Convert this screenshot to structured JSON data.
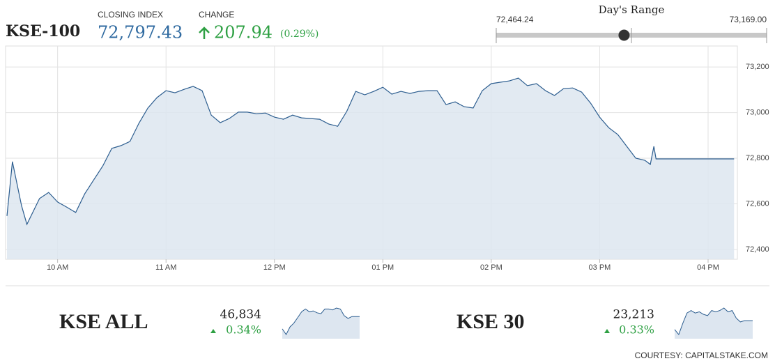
{
  "header": {
    "title": "KSE-100",
    "closing_label": "CLOSING INDEX",
    "closing_index": {
      "value": 72797.43,
      "label": "72,797.43"
    },
    "change_label": "CHANGE",
    "change": 207.94,
    "change_pct": {
      "value": 0.29,
      "label": "(0.29%)"
    }
  },
  "days_range": {
    "title": "Day's Range",
    "low": {
      "value": 72464.24,
      "label": "72,464.24"
    },
    "high": {
      "value": 73169.0,
      "label": "73,169.00"
    }
  },
  "indices": [
    {
      "name": "KSE ALL",
      "value": {
        "value": 46834,
        "label": "46,834"
      },
      "change_pct": {
        "value": 0.34,
        "label": "0.34%"
      }
    },
    {
      "name": "KSE 30",
      "value": {
        "value": 23213,
        "label": "23,213"
      },
      "change_pct": {
        "value": 0.33,
        "label": "0.33%"
      }
    }
  ],
  "footer": {
    "courtesy": "COURTESY: CAPITALSTAKE.COM"
  },
  "chart_data": [
    {
      "type": "line",
      "color": "#2c5d8f",
      "fill_color": "#dde6f0",
      "grid": true,
      "x": [
        9.533,
        9.583,
        9.667,
        9.717,
        9.833,
        9.917,
        10,
        10.083,
        10.167,
        10.25,
        10.333,
        10.417,
        10.5,
        10.583,
        10.667,
        10.75,
        10.833,
        10.917,
        11,
        11.083,
        11.167,
        11.25,
        11.333,
        11.417,
        11.5,
        11.583,
        11.667,
        11.75,
        11.833,
        11.917,
        12,
        12.083,
        12.167,
        12.25,
        12.333,
        12.417,
        12.5,
        12.583,
        12.667,
        12.75,
        12.833,
        12.917,
        13,
        13.083,
        13.167,
        13.25,
        13.333,
        13.417,
        13.5,
        13.583,
        13.667,
        13.75,
        13.833,
        13.917,
        14,
        14.083,
        14.167,
        14.25,
        14.333,
        14.417,
        14.5,
        14.583,
        14.667,
        14.75,
        14.833,
        14.917,
        15,
        15.083,
        15.167,
        15.25,
        15.333,
        15.417,
        15.467,
        15.5,
        15.52,
        16.24
      ],
      "values": [
        72547,
        72785,
        72592,
        72510,
        72623,
        72650,
        72608,
        72586,
        72562,
        72644,
        72705,
        72766,
        72843,
        72855,
        72873,
        72953,
        73020,
        73066,
        73096,
        73087,
        73102,
        73115,
        73096,
        72989,
        72956,
        72974,
        73002,
        73002,
        72995,
        72998,
        72980,
        72971,
        72989,
        72977,
        72974,
        72971,
        72950,
        72940,
        73005,
        73093,
        73078,
        73093,
        73111,
        73081,
        73093,
        73084,
        73093,
        73096,
        73096,
        73035,
        73047,
        73026,
        73020,
        73096,
        73127,
        73133,
        73139,
        73151,
        73118,
        73127,
        73096,
        73075,
        73105,
        73108,
        73090,
        73041,
        72980,
        72934,
        72904,
        72852,
        72800,
        72791,
        72773,
        72852,
        72797,
        72797
      ],
      "xlim": [
        9.52,
        16.27
      ],
      "ylim": [
        72357,
        73292
      ],
      "xticks": [
        {
          "value": 10,
          "label": "10 AM"
        },
        {
          "value": 11,
          "label": "11 AM"
        },
        {
          "value": 12,
          "label": "12 PM"
        },
        {
          "value": 13,
          "label": "01 PM"
        },
        {
          "value": 14,
          "label": "02 PM"
        },
        {
          "value": 15,
          "label": "03 PM"
        },
        {
          "value": 16,
          "label": "04 PM"
        }
      ],
      "yticks": [
        {
          "value": 72400,
          "label": "72,400"
        },
        {
          "value": 72600,
          "label": "72,600"
        },
        {
          "value": 72800,
          "label": "72,800"
        },
        {
          "value": 73000,
          "label": "73,000"
        },
        {
          "value": 73200,
          "label": "73,200"
        }
      ]
    },
    {
      "type": "spark",
      "color": "#2c5d8f",
      "fill_color": "#dde6f0",
      "values": [
        46580,
        46520,
        46600,
        46640,
        46700,
        46760,
        46790,
        46760,
        46770,
        46750,
        46740,
        46790,
        46790,
        46780,
        46800,
        46790,
        46720,
        46690,
        46710,
        46710,
        46710
      ]
    },
    {
      "type": "spark",
      "color": "#2c5d8f",
      "fill_color": "#dde6f0",
      "values": [
        22990,
        22950,
        23040,
        23120,
        23140,
        23120,
        23130,
        23110,
        23100,
        23140,
        23130,
        23140,
        23160,
        23130,
        23140,
        23080,
        23050,
        23060,
        23060,
        23060
      ]
    }
  ]
}
